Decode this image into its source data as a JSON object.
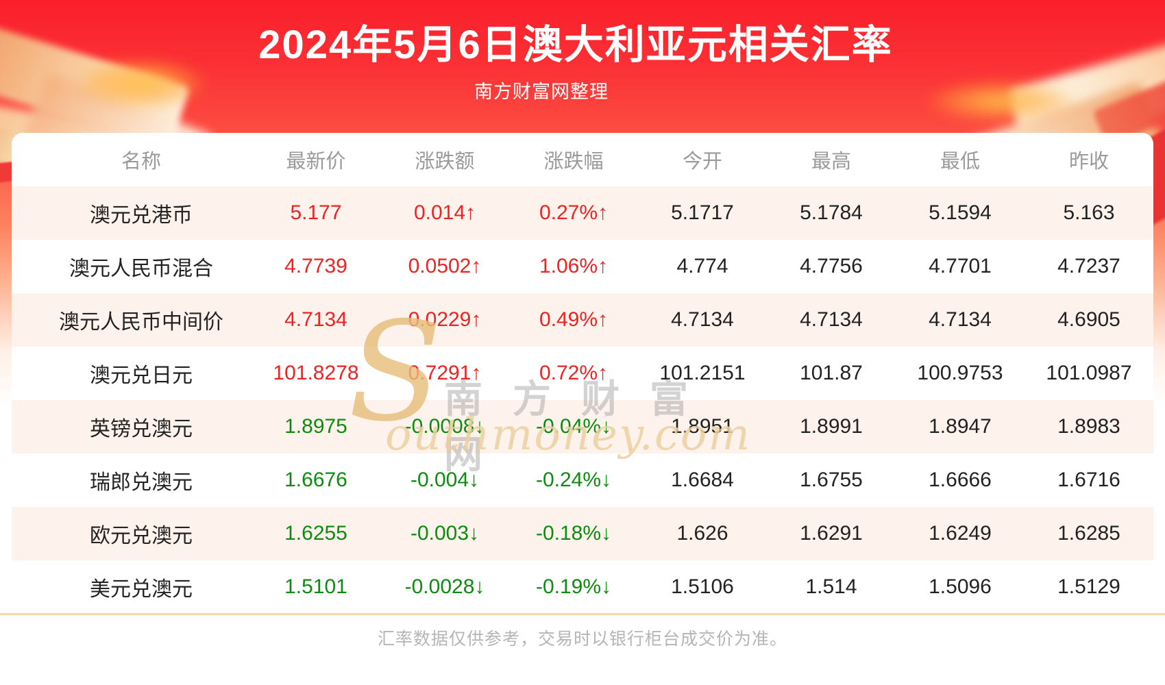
{
  "page": {
    "title": "2024年5月6日澳大利亚元相关汇率",
    "subtitle": "南方财富网整理",
    "footer_note": "汇率数据仅供参考，交易时以银行柜台成交价为准。"
  },
  "watermark": {
    "logo_s": "S",
    "cn_text": "南方财富网",
    "en_text": "outhmoney.com"
  },
  "colors": {
    "banner_red_top": "#fa1f2b",
    "banner_red_mid": "#fc5244",
    "up_text": "#ee2222",
    "down_text": "#0f8a10",
    "row_stripe": "#fdf3ec",
    "divider": "#f8d5a2",
    "header_gray": "#9a9a9a"
  },
  "chart_data": {
    "type": "table",
    "title": "2024年5月6日澳大利亚元相关汇率",
    "columns": [
      "名称",
      "最新价",
      "涨跌额",
      "涨跌幅",
      "今开",
      "最高",
      "最低",
      "昨收"
    ],
    "rows": [
      {
        "name": "澳元兑港币",
        "latest": "5.177",
        "change": "0.014↑",
        "pct": "0.27%↑",
        "open": "5.1717",
        "high": "5.1784",
        "low": "5.1594",
        "prev": "5.163",
        "direction": "up"
      },
      {
        "name": "澳元人民币混合",
        "latest": "4.7739",
        "change": "0.0502↑",
        "pct": "1.06%↑",
        "open": "4.774",
        "high": "4.7756",
        "low": "4.7701",
        "prev": "4.7237",
        "direction": "up"
      },
      {
        "name": "澳元人民币中间价",
        "latest": "4.7134",
        "change": "0.0229↑",
        "pct": "0.49%↑",
        "open": "4.7134",
        "high": "4.7134",
        "low": "4.7134",
        "prev": "4.6905",
        "direction": "up"
      },
      {
        "name": "澳元兑日元",
        "latest": "101.8278",
        "change": "0.7291↑",
        "pct": "0.72%↑",
        "open": "101.2151",
        "high": "101.87",
        "low": "100.9753",
        "prev": "101.0987",
        "direction": "up"
      },
      {
        "name": "英镑兑澳元",
        "latest": "1.8975",
        "change": "-0.0008↓",
        "pct": "-0.04%↓",
        "open": "1.8951",
        "high": "1.8991",
        "low": "1.8947",
        "prev": "1.8983",
        "direction": "down"
      },
      {
        "name": "瑞郎兑澳元",
        "latest": "1.6676",
        "change": "-0.004↓",
        "pct": "-0.24%↓",
        "open": "1.6684",
        "high": "1.6755",
        "low": "1.6666",
        "prev": "1.6716",
        "direction": "down"
      },
      {
        "name": "欧元兑澳元",
        "latest": "1.6255",
        "change": "-0.003↓",
        "pct": "-0.18%↓",
        "open": "1.626",
        "high": "1.6291",
        "low": "1.6249",
        "prev": "1.6285",
        "direction": "down"
      },
      {
        "name": "美元兑澳元",
        "latest": "1.5101",
        "change": "-0.0028↓",
        "pct": "-0.19%↓",
        "open": "1.5106",
        "high": "1.514",
        "low": "1.5096",
        "prev": "1.5129",
        "direction": "down"
      }
    ]
  }
}
